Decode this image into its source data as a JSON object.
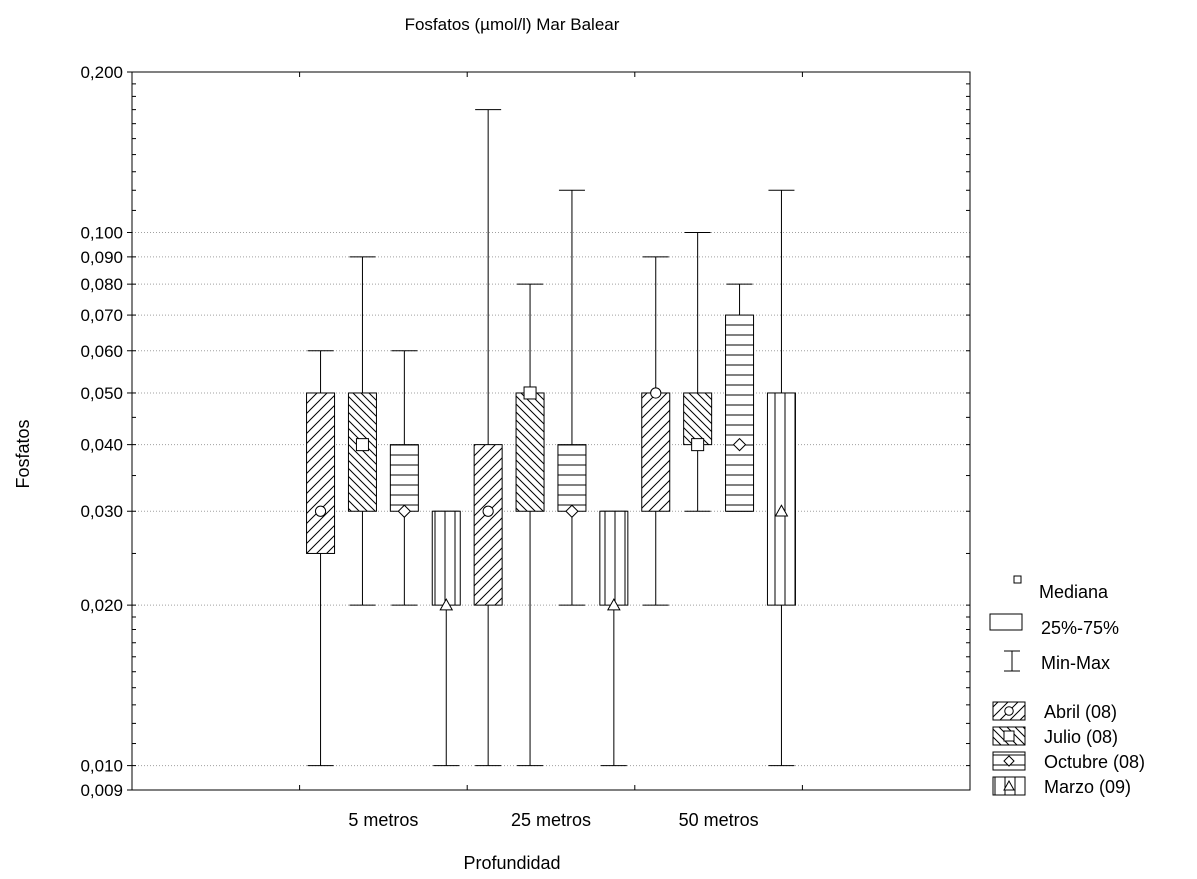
{
  "chart_data": {
    "type": "boxplot",
    "title": "Fosfatos (µmol/l) Mar Balear",
    "xlabel": "Profundidad",
    "ylabel": "Fosfatos",
    "y_scale": "log",
    "ylim": [
      0.009,
      0.2
    ],
    "y_ticks": [
      "0,009",
      "0,010",
      "0,020",
      "0,030",
      "0,040",
      "0,050",
      "0,060",
      "0,070",
      "0,080",
      "0,090",
      "0,100",
      "0,200"
    ],
    "grid": "horizontal dotted at labeled ticks",
    "categories": [
      "5 metros",
      "25 metros",
      "50 metros"
    ],
    "series": [
      {
        "name": "Abril (08)",
        "pattern": "diag-up",
        "median_marker": "circle",
        "boxes": [
          {
            "min": 0.01,
            "q1": 0.025,
            "median": 0.03,
            "q3": 0.05,
            "max": 0.06
          },
          {
            "min": 0.01,
            "q1": 0.02,
            "median": 0.03,
            "q3": 0.04,
            "max": 0.17
          },
          {
            "min": 0.02,
            "q1": 0.03,
            "median": 0.05,
            "q3": 0.05,
            "max": 0.09
          }
        ]
      },
      {
        "name": "Julio (08)",
        "pattern": "diag-down",
        "median_marker": "square",
        "boxes": [
          {
            "min": 0.02,
            "q1": 0.03,
            "median": 0.04,
            "q3": 0.05,
            "max": 0.09
          },
          {
            "min": 0.01,
            "q1": 0.03,
            "median": 0.05,
            "q3": 0.05,
            "max": 0.08
          },
          {
            "min": 0.03,
            "q1": 0.04,
            "median": 0.04,
            "q3": 0.05,
            "max": 0.1
          }
        ]
      },
      {
        "name": "Octubre (08)",
        "pattern": "horizontal",
        "median_marker": "diamond",
        "boxes": [
          {
            "min": 0.02,
            "q1": 0.03,
            "median": 0.03,
            "q3": 0.04,
            "max": 0.06
          },
          {
            "min": 0.02,
            "q1": 0.03,
            "median": 0.03,
            "q3": 0.04,
            "max": 0.12
          },
          {
            "min": 0.03,
            "q1": 0.03,
            "median": 0.04,
            "q3": 0.07,
            "max": 0.08
          }
        ]
      },
      {
        "name": "Marzo (09)",
        "pattern": "vertical",
        "median_marker": "triangle",
        "boxes": [
          {
            "min": 0.01,
            "q1": 0.02,
            "median": 0.02,
            "q3": 0.03,
            "max": 0.03
          },
          {
            "min": 0.01,
            "q1": 0.02,
            "median": 0.02,
            "q3": 0.03,
            "max": 0.03
          },
          {
            "min": 0.01,
            "q1": 0.02,
            "median": 0.03,
            "q3": 0.05,
            "max": 0.12
          }
        ]
      }
    ],
    "legend": {
      "position": "right",
      "stat_items": [
        {
          "label": "Mediana",
          "symbol": "square"
        },
        {
          "label": "25%-75%",
          "symbol": "box"
        },
        {
          "label": "Min-Max",
          "symbol": "whisker"
        }
      ]
    }
  }
}
